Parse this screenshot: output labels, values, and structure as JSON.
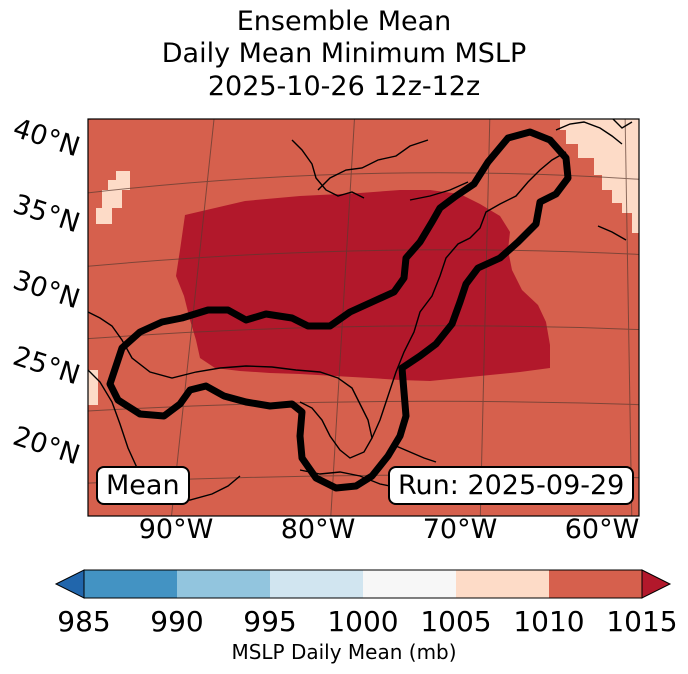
{
  "title": {
    "line1": "Ensemble Mean",
    "line2": "Daily Mean Minimum MSLP",
    "line3": "2025-10-26 12z-12z"
  },
  "map": {
    "lat_labels": [
      "40°N",
      "35°N",
      "30°N",
      "25°N",
      "20°N"
    ],
    "lon_labels": [
      "90°W",
      "80°W",
      "70°W",
      "60°W"
    ],
    "mean_box": "Mean",
    "run_box": "Run: 2025-09-29",
    "colors": {
      "c1010_1015": "#d6604d",
      "c1015_plus": "#b2182b",
      "c1005_1010": "#fddbc7",
      "contour": "#000000",
      "coast": "#000000"
    }
  },
  "colorbar": {
    "ticks": [
      "985",
      "990",
      "995",
      "1000",
      "1005",
      "1010",
      "1015"
    ],
    "label": "MSLP Daily Mean (mb)",
    "colors": [
      "#2166ac",
      "#4393c3",
      "#92c5de",
      "#d1e5f0",
      "#f7f7f7",
      "#fddbc7",
      "#d6604d",
      "#b2182b"
    ]
  }
}
